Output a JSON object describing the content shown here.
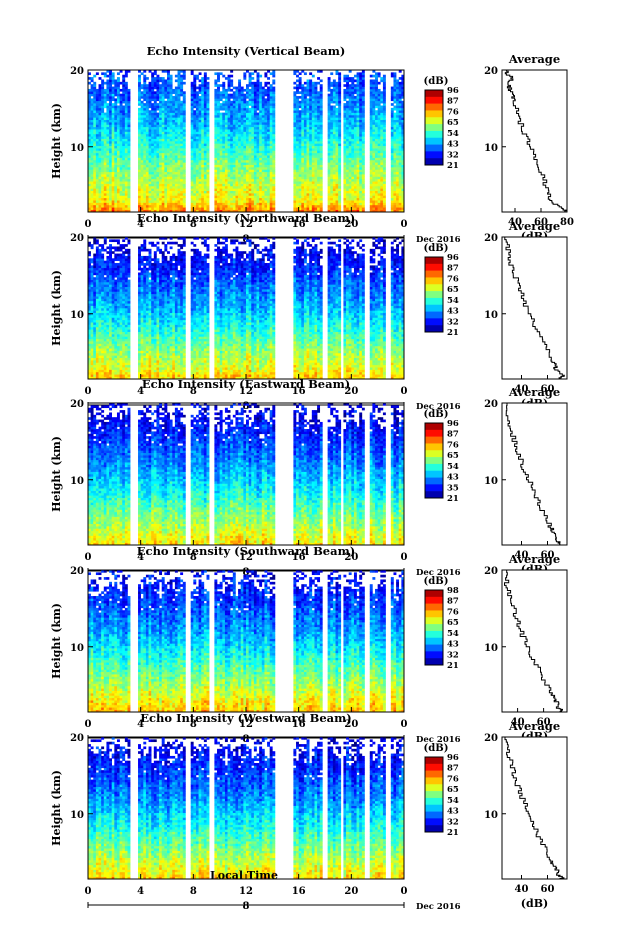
{
  "page": {
    "x_axis_label": "Local Time"
  },
  "chart_data": [
    {
      "type": "heatmap",
      "title": "Echo Intensity (Vertical Beam)",
      "ylabel": "Height (km)",
      "xlabel": "Local Time",
      "x_ticks": [
        "0",
        "4",
        "8",
        "12",
        "16",
        "20",
        "0"
      ],
      "y_ticks": [
        "20",
        "10"
      ],
      "date_marker": "8",
      "date_label": "Dec 2016",
      "xlim": [
        0,
        24
      ],
      "ylim": [
        1.5,
        20
      ],
      "gap_hours": [
        [
          3.3,
          3.8
        ],
        [
          7.5,
          7.9
        ],
        [
          9.2,
          9.7
        ],
        [
          14.3,
          15.7
        ],
        [
          17.8,
          18.2
        ],
        [
          19.2,
          19.5
        ],
        [
          21.1,
          21.5
        ],
        [
          22.6,
          23.0
        ]
      ],
      "colorbar": {
        "unit": "(dB)",
        "ticks": [
          "96",
          "87",
          "76",
          "65",
          "54",
          "43",
          "32",
          "21"
        ],
        "range": [
          21,
          96
        ]
      },
      "average_profile": {
        "title": "Average",
        "xlabel": "(dB)",
        "x_ticks": [
          "40",
          "60",
          "80"
        ],
        "xlim": [
          30,
          80
        ],
        "y_ticks": [
          "20",
          "10"
        ],
        "height_km": [
          1.5,
          2,
          3,
          4,
          6,
          8,
          10,
          12,
          14,
          16,
          17,
          18,
          19,
          20
        ],
        "values_db": [
          80,
          75,
          68,
          66,
          62,
          57,
          52,
          47,
          43,
          40,
          38,
          35,
          37,
          33
        ]
      }
    },
    {
      "type": "heatmap",
      "title": "Echo Intensity (Northward Beam)",
      "ylabel": "Height (km)",
      "xlabel": "Local Time",
      "x_ticks": [
        "0",
        "4",
        "8",
        "12",
        "16",
        "20",
        "0"
      ],
      "y_ticks": [
        "20",
        "10"
      ],
      "date_marker": "8",
      "date_label": "Dec 2016",
      "xlim": [
        0,
        24
      ],
      "ylim": [
        1.5,
        20
      ],
      "gap_hours": [
        [
          3.3,
          3.8
        ],
        [
          7.5,
          7.9
        ],
        [
          9.2,
          9.7
        ],
        [
          14.3,
          15.7
        ],
        [
          17.8,
          18.2
        ],
        [
          19.2,
          19.5
        ],
        [
          21.1,
          21.5
        ],
        [
          22.6,
          23.0
        ]
      ],
      "colorbar": {
        "unit": "(dB)",
        "ticks": [
          "96",
          "87",
          "76",
          "65",
          "54",
          "43",
          "32",
          "21"
        ],
        "range": [
          21,
          96
        ]
      },
      "average_profile": {
        "title": "Average",
        "xlabel": "(dB)",
        "x_ticks": [
          "40",
          "60"
        ],
        "xlim": [
          25,
          75
        ],
        "y_ticks": [
          "20",
          "10"
        ],
        "height_km": [
          1.5,
          2,
          3,
          4,
          6,
          8,
          10,
          12,
          14,
          16,
          18,
          20
        ],
        "values_db": [
          70,
          72,
          66,
          64,
          58,
          52,
          46,
          42,
          38,
          33,
          30,
          28
        ]
      }
    },
    {
      "type": "heatmap",
      "title": "Echo Intensity (Eastward Beam)",
      "ylabel": "Height (km)",
      "xlabel": "Local Time",
      "x_ticks": [
        "0",
        "4",
        "8",
        "12",
        "16",
        "20",
        "0"
      ],
      "y_ticks": [
        "20",
        "10"
      ],
      "date_marker": "8",
      "date_label": "Dec 2016",
      "xlim": [
        0,
        24
      ],
      "ylim": [
        1.5,
        20
      ],
      "gap_hours": [
        [
          3.3,
          3.8
        ],
        [
          7.5,
          7.9
        ],
        [
          9.2,
          9.7
        ],
        [
          14.3,
          15.7
        ],
        [
          17.8,
          18.2
        ],
        [
          19.2,
          19.5
        ],
        [
          21.1,
          21.5
        ],
        [
          22.6,
          23.0
        ]
      ],
      "colorbar": {
        "unit": "(dB)",
        "ticks": [
          "96",
          "87",
          "76",
          "65",
          "54",
          "43",
          "35",
          "21"
        ],
        "range": [
          21,
          96
        ]
      },
      "average_profile": {
        "title": "Average",
        "xlabel": "(dB)",
        "x_ticks": [
          "40",
          "60"
        ],
        "xlim": [
          25,
          75
        ],
        "y_ticks": [
          "20",
          "10"
        ],
        "height_km": [
          1.5,
          2,
          3,
          4,
          6,
          8,
          10,
          12,
          14,
          16,
          18,
          20
        ],
        "values_db": [
          71,
          68,
          66,
          62,
          57,
          51,
          46,
          41,
          37,
          33,
          30,
          28
        ]
      }
    },
    {
      "type": "heatmap",
      "title": "Echo Intensity (Southward Beam)",
      "ylabel": "Height (km)",
      "xlabel": "Local Time",
      "x_ticks": [
        "0",
        "4",
        "8",
        "12",
        "16",
        "20",
        "0"
      ],
      "y_ticks": [
        "20",
        "10"
      ],
      "date_marker": "8",
      "date_label": "Dec 2016",
      "xlim": [
        0,
        24
      ],
      "ylim": [
        1.5,
        20
      ],
      "gap_hours": [
        [
          3.3,
          3.8
        ],
        [
          7.5,
          7.9
        ],
        [
          9.2,
          9.7
        ],
        [
          14.3,
          15.7
        ],
        [
          17.8,
          18.2
        ],
        [
          19.2,
          19.5
        ],
        [
          21.1,
          21.5
        ],
        [
          22.6,
          23.0
        ]
      ],
      "colorbar": {
        "unit": "(dB)",
        "ticks": [
          "98",
          "87",
          "76",
          "65",
          "54",
          "43",
          "32",
          "21"
        ],
        "range": [
          21,
          98
        ]
      },
      "average_profile": {
        "title": "Average",
        "xlabel": "(dB)",
        "x_ticks": [
          "40",
          "60"
        ],
        "xlim": [
          28,
          78
        ],
        "y_ticks": [
          "20",
          "10"
        ],
        "height_km": [
          1.5,
          2,
          3,
          4,
          6,
          8,
          10,
          12,
          14,
          16,
          18,
          20
        ],
        "values_db": [
          75,
          72,
          70,
          66,
          60,
          54,
          48,
          43,
          39,
          35,
          32,
          30
        ]
      }
    },
    {
      "type": "heatmap",
      "title": "Echo Intensity (Westward Beam)",
      "ylabel": "Height (km)",
      "xlabel": "Local Time",
      "x_ticks": [
        "0",
        "4",
        "8",
        "12",
        "16",
        "20",
        "0"
      ],
      "y_ticks": [
        "20",
        "10"
      ],
      "date_marker": "8",
      "date_label": "Dec 2016",
      "xlim": [
        0,
        24
      ],
      "ylim": [
        1.5,
        20
      ],
      "gap_hours": [
        [
          3.3,
          3.8
        ],
        [
          7.5,
          7.9
        ],
        [
          9.2,
          9.7
        ],
        [
          14.3,
          15.7
        ],
        [
          17.8,
          18.2
        ],
        [
          19.2,
          19.5
        ],
        [
          21.1,
          21.5
        ],
        [
          22.6,
          23.0
        ]
      ],
      "colorbar": {
        "unit": "(dB)",
        "ticks": [
          "96",
          "87",
          "76",
          "65",
          "54",
          "43",
          "32",
          "21"
        ],
        "range": [
          21,
          96
        ]
      },
      "average_profile": {
        "title": "Average",
        "xlabel": "(dB)",
        "x_ticks": [
          "40",
          "60"
        ],
        "xlim": [
          25,
          75
        ],
        "y_ticks": [
          "20",
          "10"
        ],
        "height_km": [
          1.5,
          2,
          3,
          4,
          6,
          8,
          10,
          12,
          14,
          16,
          18,
          20
        ],
        "values_db": [
          72,
          69,
          66,
          63,
          57,
          51,
          46,
          41,
          37,
          33,
          30,
          28
        ]
      }
    }
  ]
}
